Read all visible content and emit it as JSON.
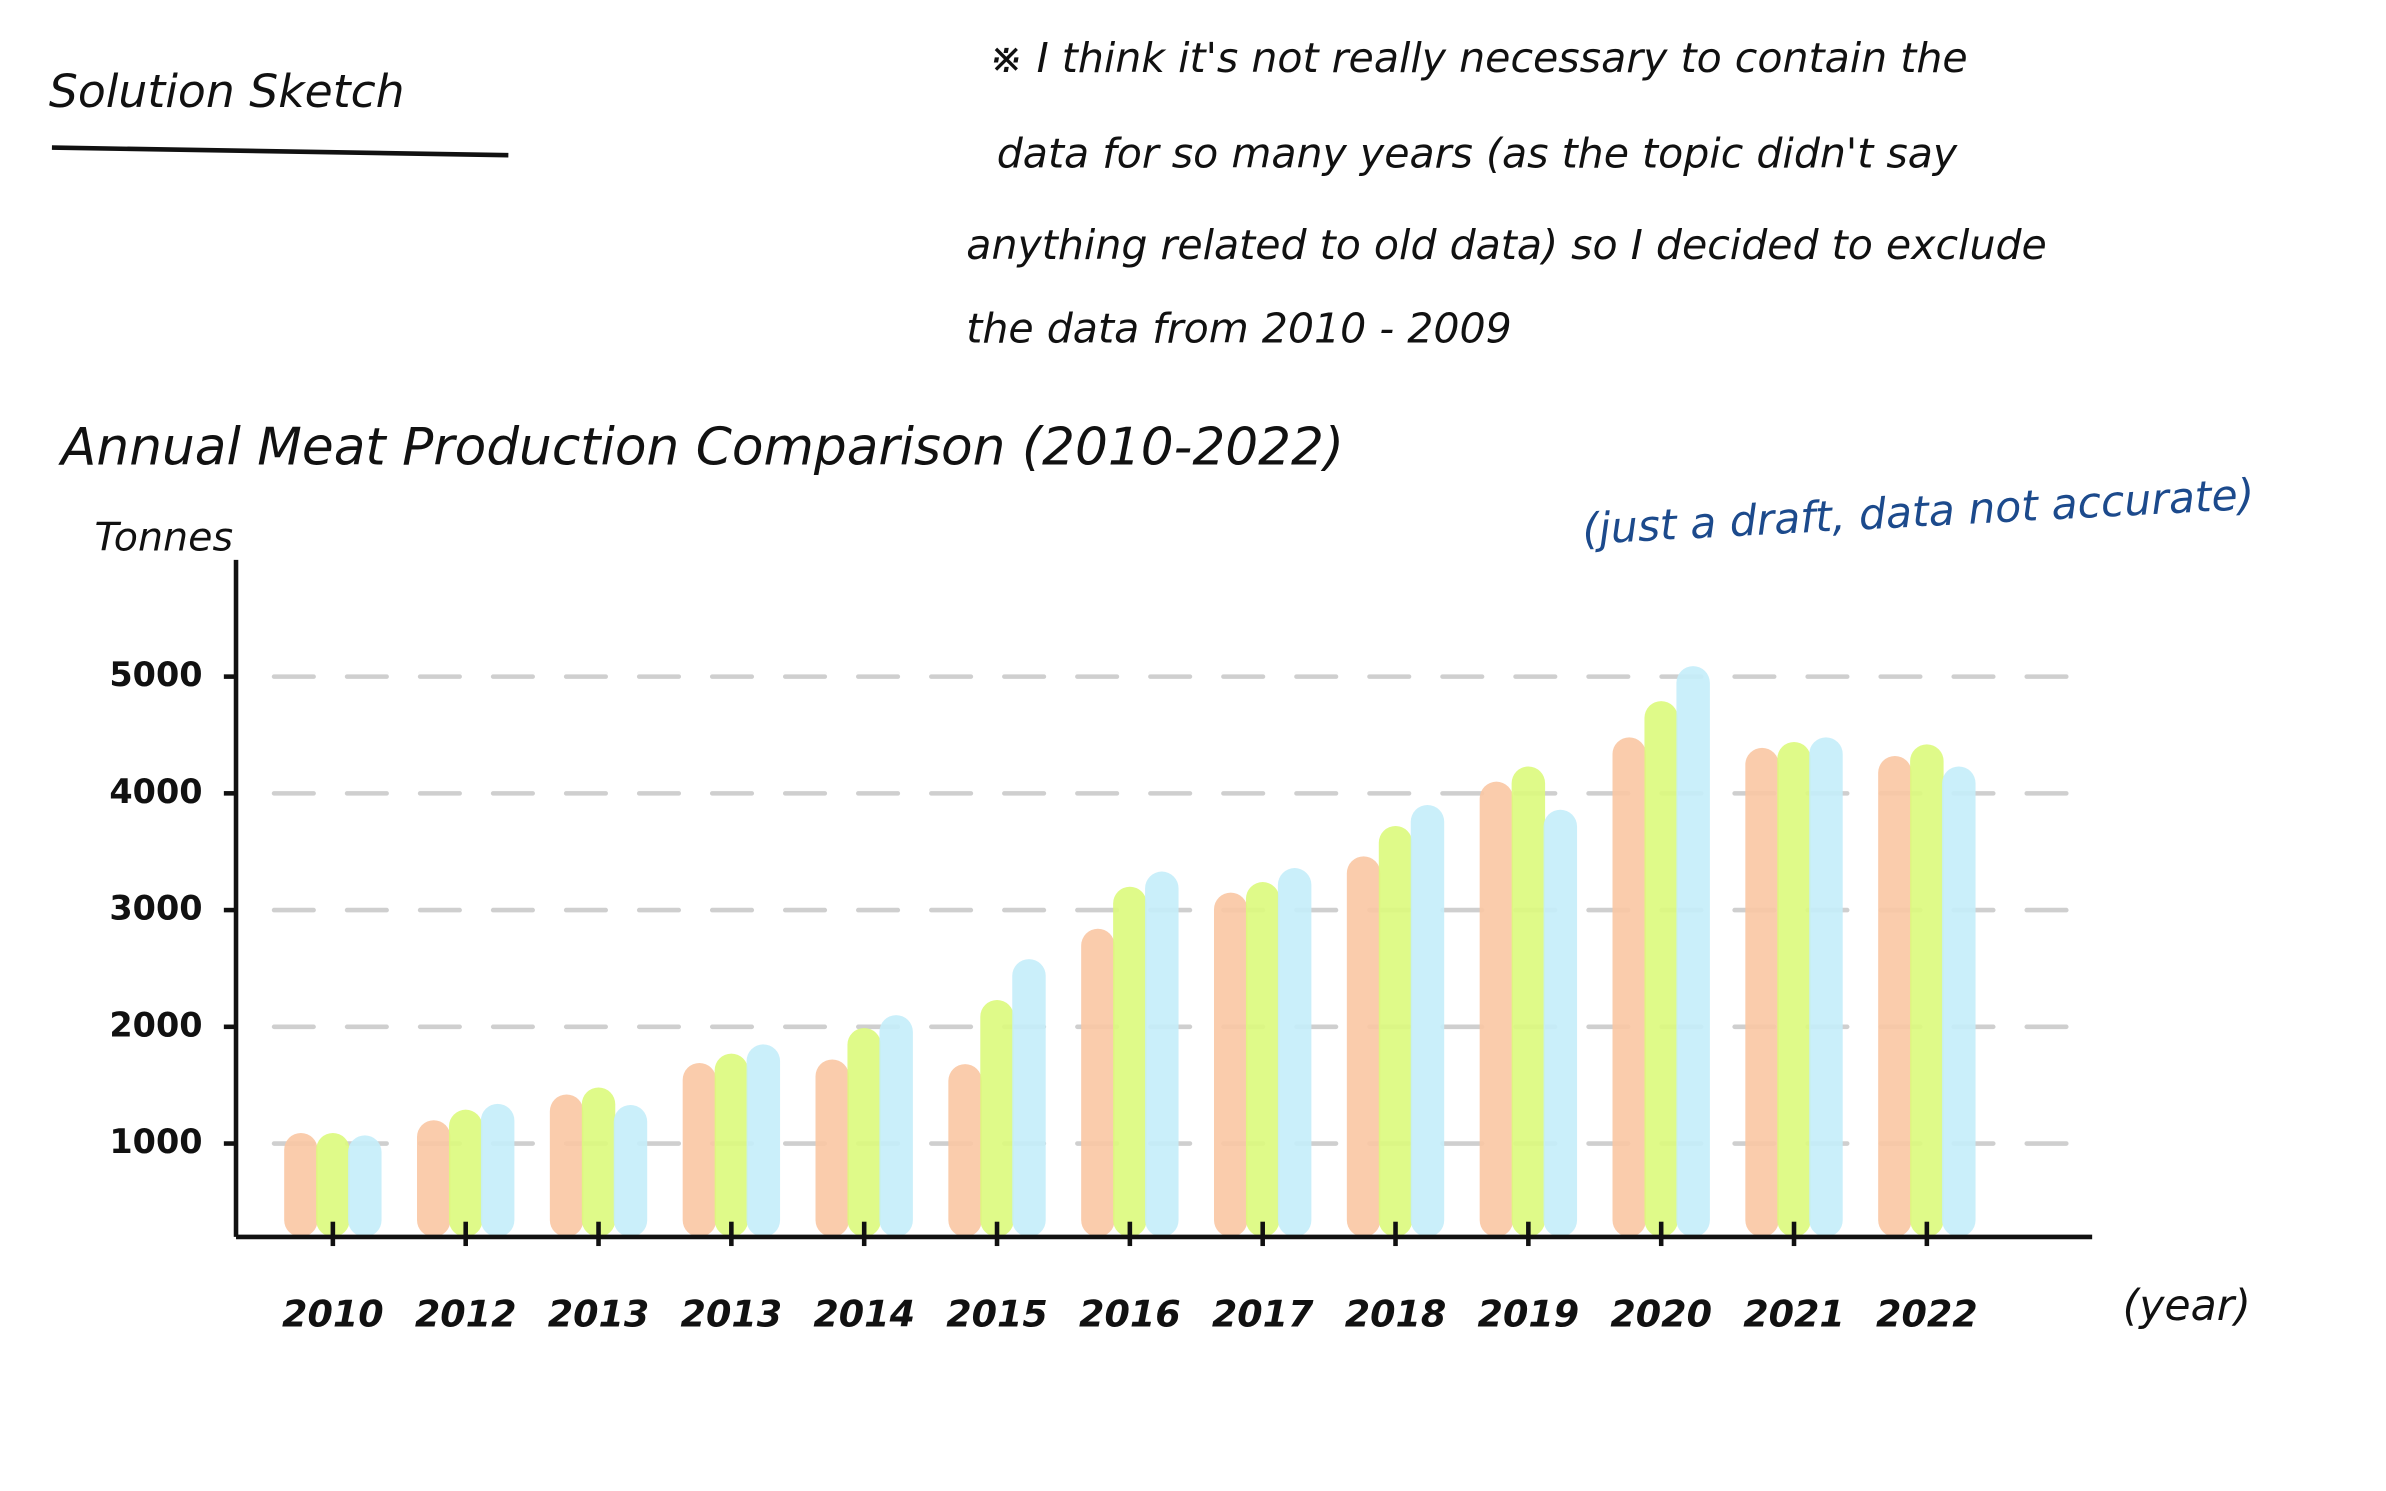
{
  "header": {
    "title": "Solution Sketch"
  },
  "note": {
    "lines": [
      "※ I think it's not really necessary to contain the",
      "data for so many years (as the topic didn't say",
      "anything related to old data) so I decided to exclude",
      "the data from 2010 - 2009"
    ]
  },
  "chart_data": {
    "type": "bar",
    "title": "Annual Meat Production Comparison (2010-2022)",
    "annotation": "(just a draft, data not accurate)",
    "y_label": "Tonnes",
    "x_label": "(year)",
    "categories": [
      "2010",
      "2012",
      "2013",
      "2013",
      "2014",
      "2015",
      "2016",
      "2017",
      "2018",
      "2019",
      "2020",
      "2021",
      "2022"
    ],
    "series": [
      {
        "color": "#f9c6a3",
        "values": [
          1090,
          1200,
          1420,
          1690,
          1720,
          1680,
          2840,
          3150,
          3460,
          4100,
          4480,
          4390,
          4320
        ]
      },
      {
        "color": "#dbf97c",
        "values": [
          1090,
          1290,
          1480,
          1770,
          1990,
          2230,
          3200,
          3240,
          3720,
          4230,
          4790,
          4440,
          4420
        ]
      },
      {
        "color": "#c4edfa",
        "values": [
          1070,
          1340,
          1330,
          1850,
          2100,
          2580,
          3330,
          3360,
          3900,
          3860,
          5090,
          4480,
          4230
        ]
      }
    ],
    "ylim": [
      200,
      6000
    ],
    "yticks": [
      1000,
      2000,
      3000,
      4000,
      5000
    ],
    "grid": true
  }
}
